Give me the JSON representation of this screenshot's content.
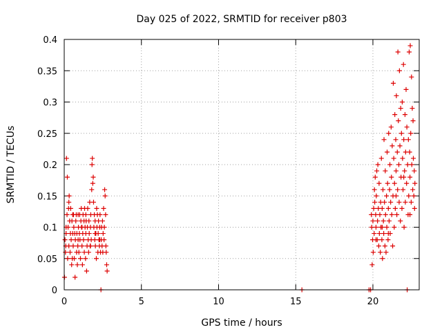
{
  "chart_data": {
    "type": "scatter",
    "title": "Day 025 of 2022, SRMTID for receiver p803",
    "xlabel": "GPS time / hours",
    "ylabel": "SRMTID / TECUs",
    "xlim": [
      0,
      23.0
    ],
    "ylim": [
      0,
      0.4
    ],
    "xticks": [
      0,
      5,
      10,
      15,
      20
    ],
    "xtick_labels": [
      "0",
      "5",
      "10",
      "15",
      "20"
    ],
    "yticks": [
      0,
      0.05,
      0.1,
      0.15,
      0.2,
      0.25,
      0.3,
      0.35,
      0.4
    ],
    "ytick_labels": [
      "0",
      "0.05",
      "0.1",
      "0.15",
      "0.2",
      "0.25",
      "0.3",
      "0.35",
      "0.4"
    ],
    "grid": true,
    "marker": "plus",
    "series": [
      {
        "name": "SRMTID",
        "color": "#dd0000",
        "points": [
          [
            0.02,
            0.02
          ],
          [
            0.05,
            0.08
          ],
          [
            0.08,
            0.06
          ],
          [
            0.1,
            0.07
          ],
          [
            0.12,
            0.09
          ],
          [
            0.15,
            0.21
          ],
          [
            0.18,
            0.12
          ],
          [
            0.2,
            0.18
          ],
          [
            0.22,
            0.05
          ],
          [
            0.25,
            0.1
          ],
          [
            0.28,
            0.13
          ],
          [
            0.3,
            0.14
          ],
          [
            0.32,
            0.15
          ],
          [
            0.35,
            0.11
          ],
          [
            0.38,
            0.06
          ],
          [
            0.4,
            0.09
          ],
          [
            0.42,
            0.13
          ],
          [
            0.45,
            0.08
          ],
          [
            0.48,
            0.04
          ],
          [
            0.5,
            0.11
          ],
          [
            0.52,
            0.05
          ],
          [
            0.55,
            0.09
          ],
          [
            0.58,
            0.07
          ],
          [
            0.6,
            0.12
          ],
          [
            0.62,
            0.1
          ],
          [
            0.65,
            0.05
          ],
          [
            0.68,
            0.09
          ],
          [
            0.7,
            0.02
          ],
          [
            0.72,
            0.08
          ],
          [
            0.75,
            0.11
          ],
          [
            0.78,
            0.12
          ],
          [
            0.8,
            0.06
          ],
          [
            0.82,
            0.09
          ],
          [
            0.85,
            0.04
          ],
          [
            0.88,
            0.07
          ],
          [
            0.9,
            0.12
          ],
          [
            0.92,
            0.1
          ],
          [
            0.95,
            0.06
          ],
          [
            0.98,
            0.09
          ],
          [
            1.0,
            0.12
          ],
          [
            1.02,
            0.08
          ],
          [
            1.05,
            0.05
          ],
          [
            1.08,
            0.11
          ],
          [
            1.1,
            0.13
          ],
          [
            1.12,
            0.1
          ],
          [
            1.15,
            0.07
          ],
          [
            1.18,
            0.04
          ],
          [
            1.2,
            0.09
          ],
          [
            1.22,
            0.12
          ],
          [
            1.25,
            0.08
          ],
          [
            1.28,
            0.11
          ],
          [
            1.3,
            0.06
          ],
          [
            1.32,
            0.13
          ],
          [
            1.35,
            0.1
          ],
          [
            1.38,
            0.05
          ],
          [
            1.4,
            0.09
          ],
          [
            1.42,
            0.11
          ],
          [
            1.45,
            0.03
          ],
          [
            1.48,
            0.07
          ],
          [
            1.5,
            0.1
          ],
          [
            1.52,
            0.13
          ],
          [
            1.55,
            0.08
          ],
          [
            1.58,
            0.06
          ],
          [
            1.6,
            0.11
          ],
          [
            1.62,
            0.09
          ],
          [
            1.65,
            0.14
          ],
          [
            1.68,
            0.07
          ],
          [
            1.7,
            0.1
          ],
          [
            1.72,
            0.12
          ],
          [
            1.75,
            0.08
          ],
          [
            1.78,
            0.16
          ],
          [
            1.8,
            0.2
          ],
          [
            1.82,
            0.21
          ],
          [
            1.85,
            0.17
          ],
          [
            1.88,
            0.18
          ],
          [
            1.9,
            0.14
          ],
          [
            1.92,
            0.1
          ],
          [
            1.95,
            0.12
          ],
          [
            1.98,
            0.08
          ],
          [
            2.0,
            0.11
          ],
          [
            2.02,
            0.07
          ],
          [
            2.05,
            0.09
          ],
          [
            2.08,
            0.05
          ],
          [
            2.1,
            0.13
          ],
          [
            2.12,
            0.1
          ],
          [
            2.15,
            0.12
          ],
          [
            2.18,
            0.06
          ],
          [
            2.2,
            0.09
          ],
          [
            2.22,
            0.11
          ],
          [
            2.25,
            0.08
          ],
          [
            2.28,
            0.07
          ],
          [
            2.3,
            0.1
          ],
          [
            2.32,
            0.12
          ],
          [
            2.35,
            0.06
          ],
          [
            2.38,
            0.0
          ],
          [
            2.4,
            0.08
          ],
          [
            2.42,
            0.1
          ],
          [
            2.45,
            0.07
          ],
          [
            2.48,
            0.11
          ],
          [
            2.5,
            0.06
          ],
          [
            2.52,
            0.09
          ],
          [
            2.55,
            0.13
          ],
          [
            2.58,
            0.08
          ],
          [
            2.6,
            0.1
          ],
          [
            2.62,
            0.16
          ],
          [
            2.65,
            0.15
          ],
          [
            2.68,
            0.12
          ],
          [
            2.7,
            0.07
          ],
          [
            2.72,
            0.06
          ],
          [
            2.75,
            0.04
          ],
          [
            2.78,
            0.03
          ],
          [
            0.12,
            0.1
          ],
          [
            0.3,
            0.07
          ],
          [
            0.55,
            0.12
          ],
          [
            0.9,
            0.08
          ],
          [
            1.15,
            0.1
          ],
          [
            1.4,
            0.12
          ],
          [
            1.7,
            0.07
          ],
          [
            2.0,
            0.09
          ],
          [
            2.3,
            0.08
          ],
          [
            15.4,
            0.0
          ],
          [
            19.75,
            0.0
          ],
          [
            19.85,
            0.0
          ],
          [
            19.9,
            0.12
          ],
          [
            19.92,
            0.1
          ],
          [
            19.95,
            0.04
          ],
          [
            19.98,
            0.08
          ],
          [
            20.0,
            0.11
          ],
          [
            20.02,
            0.06
          ],
          [
            20.05,
            0.13
          ],
          [
            20.08,
            0.09
          ],
          [
            20.1,
            0.16
          ],
          [
            20.12,
            0.14
          ],
          [
            20.15,
            0.18
          ],
          [
            20.18,
            0.12
          ],
          [
            20.2,
            0.1
          ],
          [
            20.22,
            0.15
          ],
          [
            20.25,
            0.19
          ],
          [
            20.28,
            0.08
          ],
          [
            20.3,
            0.11
          ],
          [
            20.32,
            0.2
          ],
          [
            20.35,
            0.13
          ],
          [
            20.38,
            0.07
          ],
          [
            20.4,
            0.17
          ],
          [
            20.42,
            0.09
          ],
          [
            20.45,
            0.12
          ],
          [
            20.48,
            0.06
          ],
          [
            20.5,
            0.14
          ],
          [
            20.52,
            0.1
          ],
          [
            20.55,
            0.21
          ],
          [
            20.58,
            0.08
          ],
          [
            20.6,
            0.13
          ],
          [
            20.62,
            0.05
          ],
          [
            20.65,
            0.16
          ],
          [
            20.68,
            0.11
          ],
          [
            20.7,
            0.09
          ],
          [
            20.72,
            0.24
          ],
          [
            20.75,
            0.14
          ],
          [
            20.78,
            0.07
          ],
          [
            20.8,
            0.19
          ],
          [
            20.82,
            0.12
          ],
          [
            20.85,
            0.06
          ],
          [
            20.88,
            0.15
          ],
          [
            20.9,
            0.1
          ],
          [
            20.92,
            0.22
          ],
          [
            20.95,
            0.17
          ],
          [
            20.98,
            0.08
          ],
          [
            21.0,
            0.13
          ],
          [
            21.02,
            0.25
          ],
          [
            21.05,
            0.11
          ],
          [
            21.08,
            0.16
          ],
          [
            21.1,
            0.2
          ],
          [
            21.12,
            0.09
          ],
          [
            21.15,
            0.14
          ],
          [
            21.18,
            0.26
          ],
          [
            21.2,
            0.18
          ],
          [
            21.22,
            0.12
          ],
          [
            21.25,
            0.23
          ],
          [
            21.28,
            0.07
          ],
          [
            21.3,
            0.15
          ],
          [
            21.32,
            0.33
          ],
          [
            21.35,
            0.21
          ],
          [
            21.38,
            0.1
          ],
          [
            21.4,
            0.17
          ],
          [
            21.42,
            0.28
          ],
          [
            21.45,
            0.13
          ],
          [
            21.48,
            0.24
          ],
          [
            21.5,
            0.19
          ],
          [
            21.52,
            0.31
          ],
          [
            21.55,
            0.12
          ],
          [
            21.58,
            0.22
          ],
          [
            21.6,
            0.16
          ],
          [
            21.62,
            0.38
          ],
          [
            21.65,
            0.27
          ],
          [
            21.68,
            0.2
          ],
          [
            21.7,
            0.14
          ],
          [
            21.72,
            0.35
          ],
          [
            21.75,
            0.23
          ],
          [
            21.78,
            0.11
          ],
          [
            21.8,
            0.29
          ],
          [
            21.82,
            0.18
          ],
          [
            21.85,
            0.25
          ],
          [
            21.88,
            0.13
          ],
          [
            21.9,
            0.3
          ],
          [
            21.92,
            0.21
          ],
          [
            21.95,
            0.16
          ],
          [
            21.98,
            0.36
          ],
          [
            22.0,
            0.24
          ],
          [
            22.02,
            0.1
          ],
          [
            22.05,
            0.19
          ],
          [
            22.08,
            0.28
          ],
          [
            22.1,
            0.14
          ],
          [
            22.12,
            0.22
          ],
          [
            22.15,
            0.32
          ],
          [
            22.18,
            0.17
          ],
          [
            22.2,
            0.26
          ],
          [
            22.22,
            0.0
          ],
          [
            22.25,
            0.2
          ],
          [
            22.28,
            0.12
          ],
          [
            22.3,
            0.24
          ],
          [
            22.32,
            0.15
          ],
          [
            22.35,
            0.38
          ],
          [
            22.38,
            0.22
          ],
          [
            22.4,
            0.18
          ],
          [
            22.42,
            0.39
          ],
          [
            22.45,
            0.25
          ],
          [
            22.48,
            0.14
          ],
          [
            22.5,
            0.34
          ],
          [
            22.52,
            0.2
          ],
          [
            22.55,
            0.29
          ],
          [
            22.58,
            0.16
          ],
          [
            22.6,
            0.27
          ],
          [
            22.62,
            0.21
          ],
          [
            22.65,
            0.15
          ],
          [
            22.68,
            0.19
          ],
          [
            22.7,
            0.13
          ],
          [
            22.72,
            0.17
          ],
          [
            20.2,
            0.08
          ],
          [
            20.6,
            0.1
          ],
          [
            21.0,
            0.09
          ],
          [
            21.5,
            0.15
          ],
          [
            22.0,
            0.18
          ],
          [
            22.4,
            0.12
          ]
        ]
      }
    ]
  }
}
